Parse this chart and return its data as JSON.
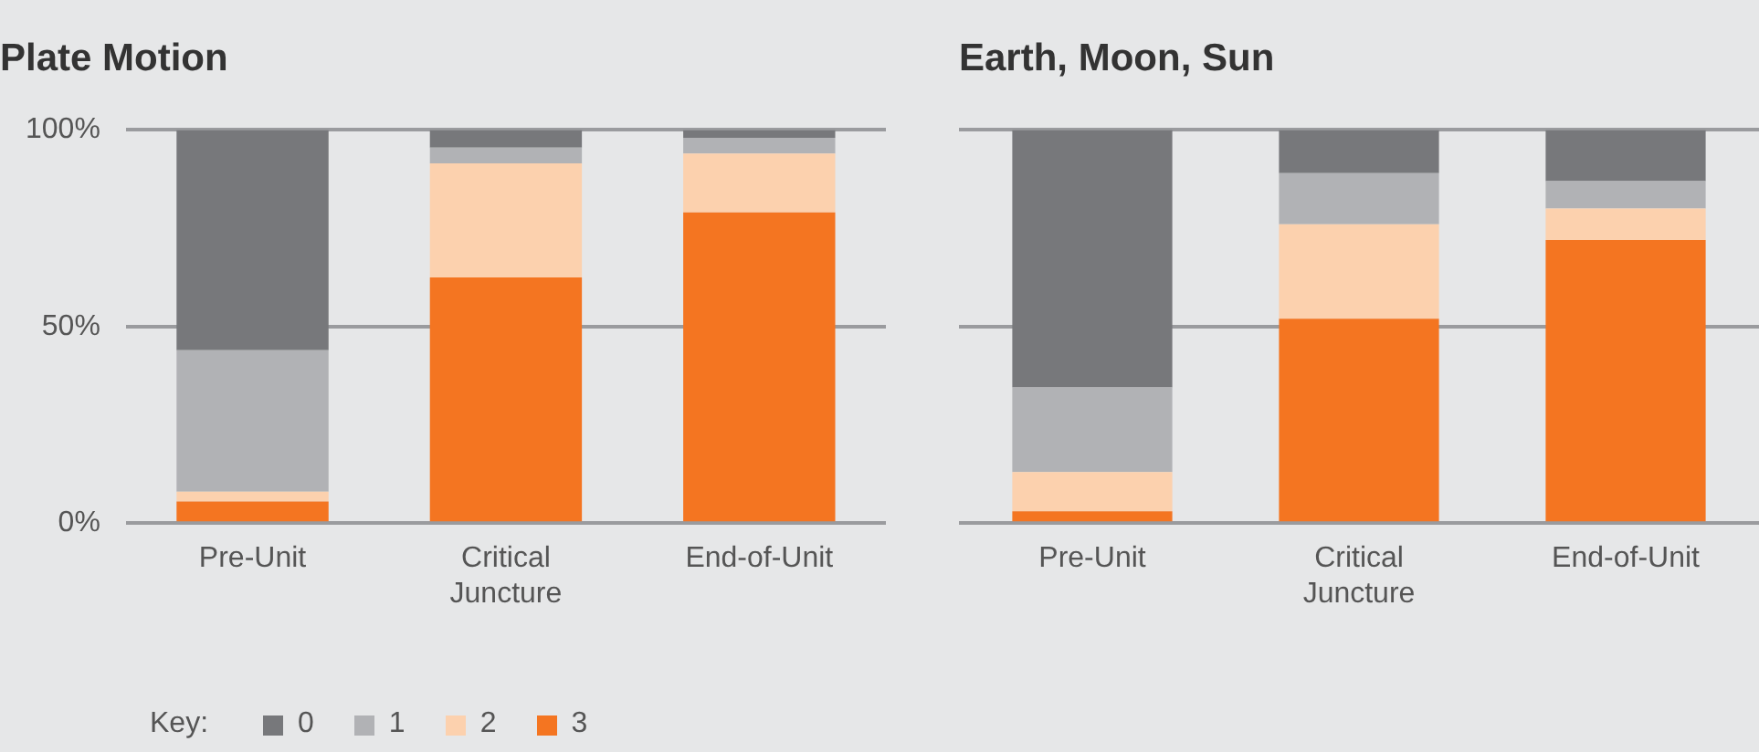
{
  "chart_data": [
    {
      "type": "bar",
      "title": "Plate Motion",
      "stacked": true,
      "categories": [
        "Pre-Unit",
        "Critical\nJuncture",
        "End-of-Unit"
      ],
      "series": [
        {
          "name": "3",
          "color": "#f47521",
          "values": [
            5.5,
            62.5,
            79
          ]
        },
        {
          "name": "2",
          "color": "#fcd1ae",
          "values": [
            2.5,
            29,
            15
          ]
        },
        {
          "name": "1",
          "color": "#b1b2b5",
          "values": [
            36,
            4,
            4
          ]
        },
        {
          "name": "0",
          "color": "#77787b",
          "values": [
            56,
            4.5,
            2
          ]
        }
      ],
      "ylim": [
        0,
        100
      ],
      "yticks": [
        {
          "value": 0,
          "label": "0%"
        },
        {
          "value": 50,
          "label": "50%"
        },
        {
          "value": 100,
          "label": "100%"
        }
      ],
      "grid": "y",
      "legend": "bottom",
      "legend_title": "Key:"
    },
    {
      "type": "bar",
      "title": "Earth, Moon, Sun",
      "stacked": true,
      "categories": [
        "Pre-Unit",
        "Critical\nJuncture",
        "End-of-Unit"
      ],
      "series": [
        {
          "name": "3",
          "color": "#f47521",
          "values": [
            3,
            52,
            72
          ]
        },
        {
          "name": "2",
          "color": "#fcd1ae",
          "values": [
            10,
            24,
            8
          ]
        },
        {
          "name": "1",
          "color": "#b1b2b5",
          "values": [
            21.5,
            13,
            7
          ]
        },
        {
          "name": "0",
          "color": "#77787b",
          "values": [
            65.5,
            11,
            13
          ]
        }
      ],
      "ylim": [
        0,
        100
      ],
      "yticks": [
        0,
        50,
        100
      ],
      "grid": "y",
      "tick_labels": "x"
    }
  ]
}
